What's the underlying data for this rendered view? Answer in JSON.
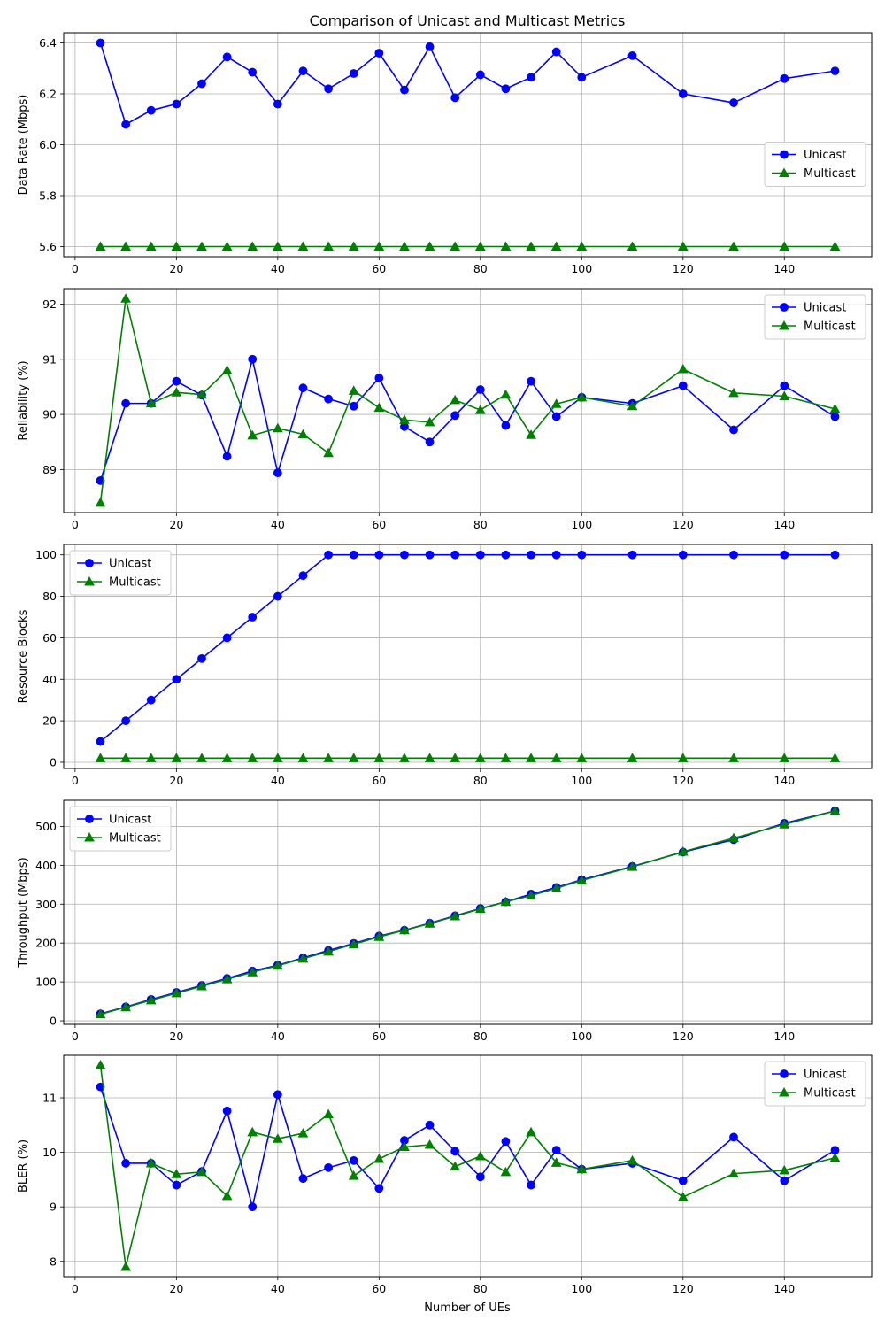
{
  "figure": {
    "title": "Comparison of Unicast and Multicast Metrics",
    "xlabel": "Number of UEs"
  },
  "colors": {
    "unicast": "#0000ff",
    "multicast": "#008000",
    "grid": "#b0b0b0",
    "frame": "#000000"
  },
  "chart_data": [
    {
      "type": "line",
      "ylabel": "Data Rate (Mbps)",
      "xlim": [
        -2.25,
        157.25
      ],
      "ylim": [
        5.56,
        6.44
      ],
      "xticks": [
        0,
        20,
        40,
        60,
        80,
        100,
        120,
        140
      ],
      "yticks": [
        5.6,
        5.8,
        6.0,
        6.2,
        6.4
      ],
      "ytick_labels": [
        "5.6",
        "5.8",
        "6.0",
        "6.2",
        "6.4"
      ],
      "legend": "center-right",
      "grid": true,
      "x": [
        5,
        10,
        15,
        20,
        25,
        30,
        35,
        40,
        45,
        50,
        55,
        60,
        65,
        70,
        75,
        80,
        85,
        90,
        95,
        100,
        110,
        120,
        130,
        140,
        150
      ],
      "series": [
        {
          "name": "Unicast",
          "marker": "circle",
          "values": [
            6.4,
            6.08,
            6.135,
            6.16,
            6.24,
            6.345,
            6.285,
            6.16,
            6.29,
            6.22,
            6.28,
            6.36,
            6.215,
            6.385,
            6.185,
            6.275,
            6.22,
            6.265,
            6.365,
            6.265,
            6.35,
            6.2,
            6.165,
            6.26,
            6.29
          ]
        },
        {
          "name": "Multicast",
          "marker": "triangle",
          "values": [
            5.6,
            5.6,
            5.6,
            5.6,
            5.6,
            5.6,
            5.6,
            5.6,
            5.6,
            5.6,
            5.6,
            5.6,
            5.6,
            5.6,
            5.6,
            5.6,
            5.6,
            5.6,
            5.6,
            5.6,
            5.6,
            5.6,
            5.6,
            5.6,
            5.6
          ]
        }
      ]
    },
    {
      "type": "line",
      "ylabel": "Reliability (%)",
      "xlim": [
        -2.25,
        157.25
      ],
      "ylim": [
        88.22,
        92.28
      ],
      "xticks": [
        0,
        20,
        40,
        60,
        80,
        100,
        120,
        140
      ],
      "yticks": [
        89,
        90,
        91,
        92
      ],
      "ytick_labels": [
        "89",
        "90",
        "91",
        "92"
      ],
      "legend": "top-right",
      "grid": true,
      "x": [
        5,
        10,
        15,
        20,
        25,
        30,
        35,
        40,
        45,
        50,
        55,
        60,
        65,
        70,
        75,
        80,
        85,
        90,
        95,
        100,
        110,
        120,
        130,
        140,
        150
      ],
      "series": [
        {
          "name": "Unicast",
          "marker": "circle",
          "values": [
            88.8,
            90.2,
            90.2,
            90.6,
            90.35,
            89.24,
            91.0,
            88.94,
            90.48,
            90.28,
            90.15,
            90.66,
            89.78,
            89.5,
            89.98,
            90.45,
            89.8,
            90.6,
            89.96,
            90.31,
            90.2,
            90.52,
            89.72,
            90.52,
            89.96
          ]
        },
        {
          "name": "Multicast",
          "marker": "triangle",
          "values": [
            88.4,
            92.1,
            90.2,
            90.4,
            90.36,
            90.8,
            89.62,
            89.75,
            89.64,
            89.3,
            90.43,
            90.12,
            89.9,
            89.86,
            90.26,
            90.08,
            90.36,
            89.63,
            90.19,
            90.31,
            90.15,
            90.82,
            90.39,
            90.33,
            90.1
          ]
        }
      ]
    },
    {
      "type": "line",
      "ylabel": "Resource Blocks",
      "xlim": [
        -2.25,
        157.25
      ],
      "ylim": [
        -3,
        105
      ],
      "xticks": [
        0,
        20,
        40,
        60,
        80,
        100,
        120,
        140
      ],
      "yticks": [
        0,
        20,
        40,
        60,
        80,
        100
      ],
      "ytick_labels": [
        "0",
        "20",
        "40",
        "60",
        "80",
        "100"
      ],
      "legend": "top-left",
      "grid": true,
      "x": [
        5,
        10,
        15,
        20,
        25,
        30,
        35,
        40,
        45,
        50,
        55,
        60,
        65,
        70,
        75,
        80,
        85,
        90,
        95,
        100,
        110,
        120,
        130,
        140,
        150
      ],
      "series": [
        {
          "name": "Unicast",
          "marker": "circle",
          "values": [
            10,
            20,
            30,
            40,
            50,
            60,
            70,
            80,
            90,
            100,
            100,
            100,
            100,
            100,
            100,
            100,
            100,
            100,
            100,
            100,
            100,
            100,
            100,
            100,
            100
          ]
        },
        {
          "name": "Multicast",
          "marker": "triangle",
          "values": [
            2,
            2,
            2,
            2,
            2,
            2,
            2,
            2,
            2,
            2,
            2,
            2,
            2,
            2,
            2,
            2,
            2,
            2,
            2,
            2,
            2,
            2,
            2,
            2,
            2
          ]
        }
      ]
    },
    {
      "type": "line",
      "ylabel": "Throughput (Mbps)",
      "xlim": [
        -2.25,
        157.25
      ],
      "ylim": [
        -9,
        567
      ],
      "xticks": [
        0,
        20,
        40,
        60,
        80,
        100,
        120,
        140
      ],
      "yticks": [
        0,
        100,
        200,
        300,
        400,
        500
      ],
      "ytick_labels": [
        "0",
        "100",
        "200",
        "300",
        "400",
        "500"
      ],
      "legend": "top-left",
      "grid": true,
      "x": [
        5,
        10,
        15,
        20,
        25,
        30,
        35,
        40,
        45,
        50,
        55,
        60,
        65,
        70,
        75,
        80,
        85,
        90,
        95,
        100,
        110,
        120,
        130,
        140,
        150
      ],
      "series": [
        {
          "name": "Unicast",
          "marker": "circle",
          "values": [
            18,
            36,
            55,
            73,
            91,
            109,
            128,
            143,
            162,
            181,
            199,
            218,
            233,
            251,
            270,
            289,
            306,
            326,
            343,
            363,
            397,
            434,
            466,
            508,
            540
          ]
        },
        {
          "name": "Multicast",
          "marker": "triangle",
          "values": [
            17,
            35,
            53,
            71,
            89,
            107,
            125,
            142,
            160,
            178,
            197,
            216,
            233,
            250,
            269,
            288,
            306,
            322,
            341,
            361,
            396,
            435,
            470,
            505,
            540
          ]
        }
      ]
    },
    {
      "type": "line",
      "ylabel": "BLER (%)",
      "xlim": [
        -2.25,
        157.25
      ],
      "ylim": [
        7.72,
        11.78
      ],
      "xticks": [
        0,
        20,
        40,
        60,
        80,
        100,
        120,
        140
      ],
      "yticks": [
        8,
        9,
        10,
        11
      ],
      "ytick_labels": [
        "8",
        "9",
        "10",
        "11"
      ],
      "legend": "top-right",
      "grid": true,
      "x": [
        5,
        10,
        15,
        20,
        25,
        30,
        35,
        40,
        45,
        50,
        55,
        60,
        65,
        70,
        75,
        80,
        85,
        90,
        95,
        100,
        110,
        120,
        130,
        140,
        150
      ],
      "series": [
        {
          "name": "Unicast",
          "marker": "circle",
          "values": [
            11.2,
            9.8,
            9.8,
            9.4,
            9.65,
            10.76,
            9.0,
            11.06,
            9.52,
            9.72,
            9.85,
            9.34,
            10.22,
            10.5,
            10.02,
            9.55,
            10.2,
            9.4,
            10.04,
            9.69,
            9.8,
            9.48,
            10.28,
            9.48,
            10.04
          ]
        },
        {
          "name": "Multicast",
          "marker": "triangle",
          "values": [
            11.6,
            7.9,
            9.8,
            9.6,
            9.64,
            9.2,
            10.37,
            10.25,
            10.35,
            10.7,
            9.57,
            9.88,
            10.1,
            10.14,
            9.74,
            9.93,
            9.64,
            10.37,
            9.81,
            9.69,
            9.85,
            9.18,
            9.61,
            9.67,
            9.9
          ]
        }
      ]
    }
  ]
}
